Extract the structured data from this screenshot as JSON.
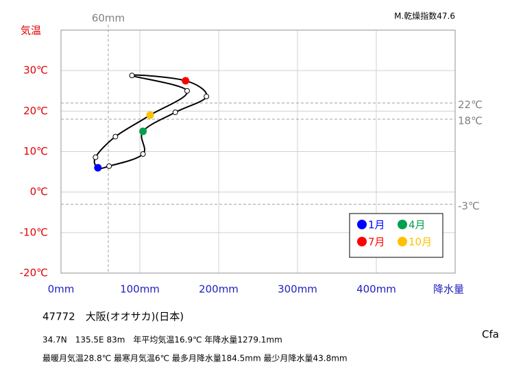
{
  "chart_data": {
    "type": "line",
    "title": "47772　大阪(オオサカ)(日本)",
    "corner_note": "M.乾燥指数47.6",
    "climate_class": "Cfa",
    "info_lines": [
      "34.7N　135.5E 83m　年平均気温16.9℃ 年降水量1279.1mm",
      "最暖月気温28.8℃ 最寒月気温6℃ 最多月降水量184.5mm 最少月降水量43.8mm"
    ],
    "y_label": "気温",
    "x_label": "降水量",
    "x": [
      46.8,
      61,
      104,
      104,
      145,
      184.5,
      158,
      90,
      160,
      113,
      69,
      43.8
    ],
    "series": [
      {
        "values": [
          6.0,
          6.4,
          9.4,
          15.0,
          19.7,
          23.6,
          27.5,
          28.8,
          25.0,
          19.0,
          13.7,
          8.6
        ],
        "color": "#000000"
      }
    ],
    "categories": [
      "1月",
      null,
      null,
      "4月",
      null,
      null,
      "7月",
      null,
      null,
      "10月",
      null,
      null
    ],
    "marker_colors": [
      "#0000ff",
      null,
      null,
      "#00a050",
      null,
      null,
      "#ff0000",
      null,
      null,
      "#ffc000",
      null,
      null
    ],
    "xlim": [
      0,
      500
    ],
    "ylim": [
      -20,
      40
    ],
    "xticks": [
      {
        "value": 0,
        "label": "0mm"
      },
      {
        "value": 100,
        "label": "100mm"
      },
      {
        "value": 200,
        "label": "200mm"
      },
      {
        "value": 300,
        "label": "300mm"
      },
      {
        "value": 400,
        "label": "400mm"
      }
    ],
    "yticks": [
      {
        "value": -20,
        "label": "-20℃"
      },
      {
        "value": -10,
        "label": "-10℃"
      },
      {
        "value": 0,
        "label": "0℃"
      },
      {
        "value": 10,
        "label": "10℃"
      },
      {
        "value": 20,
        "label": "20℃"
      },
      {
        "value": 30,
        "label": "30℃"
      }
    ],
    "reference_lines": {
      "x": [
        {
          "value": 60,
          "label": "60mm"
        }
      ],
      "y": [
        {
          "value": 22,
          "label": "22℃"
        },
        {
          "value": 18,
          "label": "18℃"
        },
        {
          "value": -3,
          "label": "-3℃"
        }
      ]
    },
    "grid": true
  }
}
